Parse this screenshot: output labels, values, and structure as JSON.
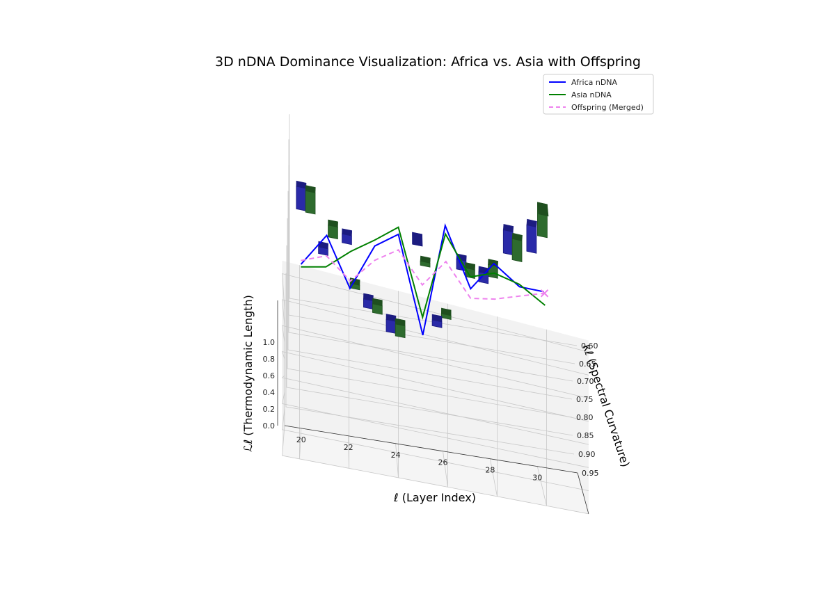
{
  "chart_data": {
    "type": "bar",
    "title": "3D nDNA Dominance Visualization: Africa vs. Asia with Offspring",
    "xlabel": "ℓ (Layer Index)",
    "ylabel": "κℓ (Spectral Curvature)",
    "zlabel": "ℒℓ (Thermodynamic Length)",
    "x_ticks": [
      "20",
      "22",
      "24",
      "26",
      "28",
      "30"
    ],
    "y_ticks": [
      "0.60",
      "0.65",
      "0.70",
      "0.75",
      "0.80",
      "0.85",
      "0.90",
      "0.95"
    ],
    "z_ticks": [
      "0.0",
      "0.2",
      "0.4",
      "0.6",
      "0.8",
      "1.0"
    ],
    "legend": [
      {
        "label": "Africa nDNA",
        "color": "#0000ff",
        "style": "solid"
      },
      {
        "label": "Asia nDNA",
        "color": "#008000",
        "style": "solid"
      },
      {
        "label": "Offspring (Merged)",
        "color": "#ee82ee",
        "style": "dashed"
      }
    ],
    "legend_placement": "top-right",
    "grid": true,
    "x": [
      20,
      21,
      22,
      23,
      24,
      25,
      26,
      27,
      28,
      29,
      30
    ],
    "series": [
      {
        "name": "Africa nDNA",
        "color": "#0000ff",
        "kappa": [
          0.62,
          0.72,
          0.65,
          0.78,
          0.82,
          0.6,
          0.82,
          0.68,
          0.72,
          0.65,
          0.64
        ],
        "L": [
          1.24,
          1.15,
          1.03,
          0.92,
          0.9,
          0.98,
          1.06,
          1.14,
          1.24,
          1.38,
          1.43
        ]
      },
      {
        "name": "Asia nDNA",
        "color": "#008000",
        "kappa": [
          0.62,
          0.66,
          0.75,
          0.79,
          0.83,
          0.65,
          0.8,
          0.7,
          0.7,
          0.66,
          0.6
        ],
        "L": [
          1.22,
          1.12,
          0.95,
          0.93,
          0.92,
          0.93,
          1.07,
          1.16,
          1.24,
          1.36,
          1.48
        ]
      },
      {
        "name": "Offspring (Merged)",
        "color": "#ee82ee",
        "kappa": [
          0.62,
          0.7,
          0.7,
          0.76,
          0.78,
          0.7,
          0.75,
          0.68,
          0.68,
          0.65,
          0.62
        ],
        "L": [
          1.27,
          1.06,
          0.9,
          0.88,
          0.93,
          1.0,
          1.04,
          1.06,
          1.1,
          1.3,
          1.5
        ]
      }
    ]
  }
}
